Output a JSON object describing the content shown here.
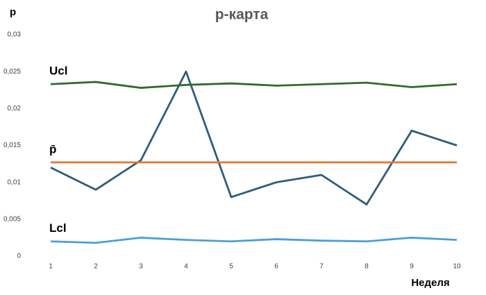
{
  "chart_data": {
    "type": "line",
    "title": "p-карта",
    "y_label": "p",
    "x_label": "Неделя",
    "categories": [
      1,
      2,
      3,
      4,
      5,
      6,
      7,
      8,
      9,
      10
    ],
    "series": [
      {
        "color": "#2f5b7c",
        "values": [
          0.012,
          0.009,
          0.013,
          0.025,
          0.008,
          0.01,
          0.011,
          0.007,
          0.017,
          0.015
        ]
      },
      {
        "name": "Ucl",
        "color": "#2e6b2e",
        "values": [
          0.0233,
          0.0236,
          0.0228,
          0.0232,
          0.0234,
          0.0231,
          0.0233,
          0.0235,
          0.0229,
          0.0233
        ]
      },
      {
        "name": "p̄",
        "color": "#e07b39",
        "values": [
          0.0127,
          0.0127,
          0.0127,
          0.0127,
          0.0127,
          0.0127,
          0.0127,
          0.0127,
          0.0127,
          0.0127
        ]
      },
      {
        "name": "Lcl",
        "color": "#4a9fd8",
        "values": [
          0.002,
          0.0018,
          0.0025,
          0.0022,
          0.002,
          0.0023,
          0.0021,
          0.002,
          0.0025,
          0.0022
        ]
      }
    ],
    "ylim": [
      0,
      0.03
    ],
    "yticks": [
      0,
      {
        "value": 0.005,
        "label": "0,005"
      },
      {
        "value": 0.01,
        "label": "0,01"
      },
      {
        "value": 0.015,
        "label": "0,015"
      },
      {
        "value": 0.02,
        "label": "0,02"
      },
      {
        "value": 0.025,
        "label": "0,025"
      },
      {
        "value": 0.03,
        "label": "0,03"
      }
    ],
    "grid": false
  }
}
